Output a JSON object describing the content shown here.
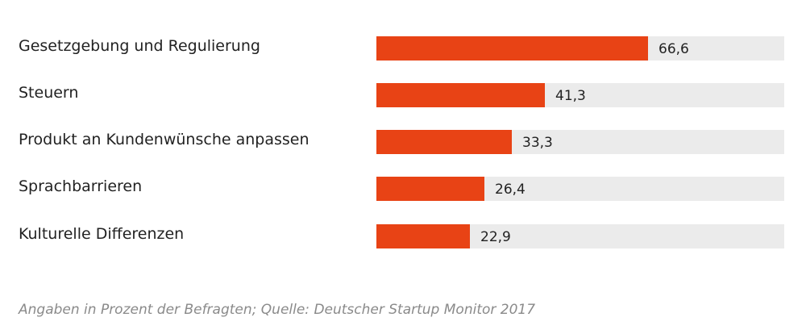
{
  "chart_data": {
    "type": "bar",
    "orientation": "horizontal",
    "categories": [
      "Gesetzgebung und Regulierung",
      "Steuern",
      "Produkt an Kundenwünsche anpassen",
      "Sprachbarrieren",
      "Kulturelle Differenzen"
    ],
    "values": [
      66.6,
      41.3,
      33.3,
      26.4,
      22.9
    ],
    "value_labels": [
      "66,6",
      "41,3",
      "33,3",
      "26,4",
      "22,9"
    ],
    "xlim": [
      0,
      100
    ],
    "grid": false,
    "legend": "none",
    "colors": {
      "bar": "#e84315",
      "track": "#ebebeb"
    }
  },
  "footnote": "Angaben in Prozent der Befragten; Quelle: Deutscher Startup Monitor 2017"
}
